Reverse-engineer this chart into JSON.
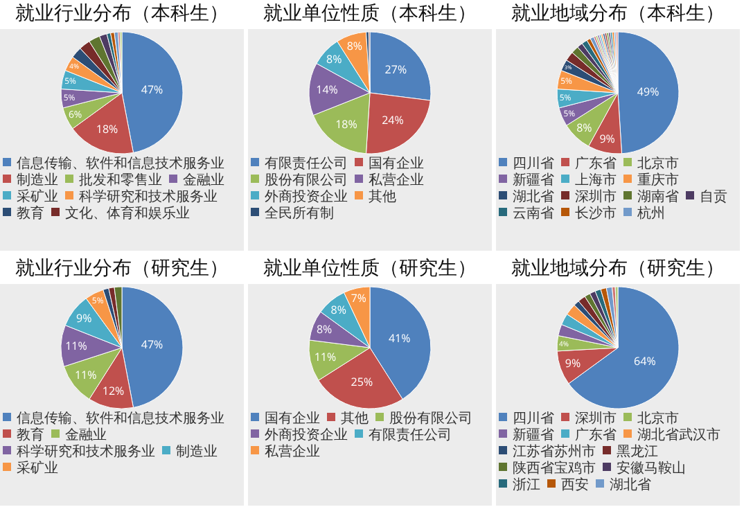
{
  "chart_data": [
    {
      "type": "pie",
      "title": "就业行业分布（本科生）",
      "legend": "bottom",
      "categories": [
        "信息传输、软件和信息技术服务业",
        "制造业",
        "批发和零售业",
        "金融业",
        "采矿业",
        "科学研究和技术服务业",
        "教育",
        "文化、体育和娱乐业",
        null,
        null,
        null,
        null,
        null,
        null,
        null
      ],
      "values": [
        47,
        18,
        6,
        5,
        5,
        4,
        3,
        3,
        3,
        2,
        1,
        1,
        1,
        0.5,
        0.5
      ],
      "colors": [
        "#4f81bd",
        "#c0504d",
        "#9bbb59",
        "#8064a2",
        "#4bacc6",
        "#f79646",
        "#2c4d75",
        "#772c2a",
        "#5f7530",
        "#4d3b62",
        "#276a7c",
        "#b65708",
        "#729aca",
        "#cd7371",
        "#afc97a"
      ],
      "value_labels": [
        "47%",
        "18%",
        "6%",
        "5%",
        "5%",
        "4%",
        null,
        null,
        null,
        null,
        null,
        null,
        null,
        null,
        null
      ]
    },
    {
      "type": "pie",
      "title": "就业单位性质（本科生）",
      "legend": "bottom",
      "categories": [
        "有限责任公司",
        "国有企业",
        "股份有限公司",
        "私营企业",
        "外商投资企业",
        "其他",
        "全民所有制",
        null
      ],
      "values": [
        27,
        24,
        18,
        14,
        8,
        8,
        0.7,
        0.3
      ],
      "colors": [
        "#4f81bd",
        "#c0504d",
        "#9bbb59",
        "#8064a2",
        "#4bacc6",
        "#f79646",
        "#2c4d75",
        "#772c2a"
      ],
      "value_labels": [
        "27%",
        "24%",
        "18%",
        "14%",
        "8%",
        "8%",
        null,
        null
      ]
    },
    {
      "type": "pie",
      "title": "就业地域分布（本科生）",
      "legend": "bottom",
      "categories": [
        "四川省",
        "广东省",
        "北京市",
        "新疆省",
        "上海市",
        "重庆市",
        "湖北省",
        "深圳市",
        "湖南省",
        "自贡",
        "云南省",
        "长沙市",
        "杭州",
        null,
        null,
        null,
        null,
        null,
        null,
        null,
        null,
        null,
        null,
        null,
        null,
        null
      ],
      "values": [
        49,
        9,
        8,
        5,
        5,
        5,
        3,
        2.5,
        2,
        1.5,
        1.5,
        1,
        1,
        0.5,
        0.5,
        0.5,
        0.5,
        0.5,
        0.5,
        0.5,
        0.5,
        0.5,
        0.5,
        0.5,
        0.5,
        0.5
      ],
      "colors": [
        "#4f81bd",
        "#c0504d",
        "#9bbb59",
        "#8064a2",
        "#4bacc6",
        "#f79646",
        "#2c4d75",
        "#772c2a",
        "#5f7530",
        "#4d3b62",
        "#276a7c",
        "#b65708",
        "#729aca",
        "#cd7371",
        "#afc97a",
        "#9983b5",
        "#6fbdd1",
        "#f9ab6b",
        "#3a5e8c",
        "#9c3b38",
        "#7c9a41",
        "#644e81",
        "#338da4",
        "#ec7a1c",
        "#95b3d7",
        "#d99694"
      ],
      "value_labels": [
        "49%",
        "9%",
        "8%",
        "5%",
        "5%",
        "5%",
        "3%",
        null,
        null,
        null,
        null,
        null,
        null,
        null,
        null,
        null,
        null,
        null,
        null,
        null,
        null,
        null,
        null,
        null,
        null,
        null
      ]
    },
    {
      "type": "pie",
      "title": "就业行业分布（研究生）",
      "legend": "bottom",
      "categories": [
        "信息传输、软件和信息技术服务业",
        "教育",
        "金融业",
        "科学研究和技术服务业",
        "制造业",
        "采矿业",
        null,
        null,
        null
      ],
      "values": [
        47,
        12,
        11,
        11,
        9,
        5,
        1.5,
        1.5,
        2
      ],
      "colors": [
        "#4f81bd",
        "#c0504d",
        "#9bbb59",
        "#8064a2",
        "#4bacc6",
        "#f79646",
        "#2c4d75",
        "#772c2a",
        "#5f7530"
      ],
      "value_labels": [
        "47%",
        "12%",
        "11%",
        "11%",
        "9%",
        "5%",
        null,
        null,
        null
      ]
    },
    {
      "type": "pie",
      "title": "就业单位性质（研究生）",
      "legend": "bottom",
      "categories": [
        "国有企业",
        "其他",
        "股份有限公司",
        "外商投资企业",
        "有限责任公司",
        "私营企业"
      ],
      "values": [
        41,
        25,
        11,
        8,
        8,
        7
      ],
      "colors": [
        "#4f81bd",
        "#c0504d",
        "#9bbb59",
        "#8064a2",
        "#4bacc6",
        "#f79646"
      ],
      "value_labels": [
        "41%",
        "25%",
        "11%",
        "8%",
        "8%",
        "7%"
      ]
    },
    {
      "type": "pie",
      "title": "就业地域分布（研究生）",
      "legend": "bottom",
      "categories": [
        "四川省",
        "深圳市",
        "北京市",
        "新疆省",
        "广东省",
        "湖北省武汉市",
        "江苏省苏州市",
        "黑龙江",
        "陕西省宝鸡市",
        "安徽马鞍山",
        "浙江",
        "西安",
        "湖北省",
        null,
        null
      ],
      "values": [
        64,
        9,
        4,
        3,
        3,
        3,
        1.5,
        2,
        1.5,
        1.5,
        1.5,
        1.5,
        1.5,
        0.8,
        0.7
      ],
      "colors": [
        "#4f81bd",
        "#c0504d",
        "#9bbb59",
        "#8064a2",
        "#4bacc6",
        "#f79646",
        "#2c4d75",
        "#772c2a",
        "#5f7530",
        "#4d3b62",
        "#276a7c",
        "#b65708",
        "#729aca",
        "#cd7371",
        "#afc97a"
      ],
      "value_labels": [
        "64%",
        "9%",
        "4%",
        null,
        null,
        null,
        null,
        null,
        null,
        null,
        null,
        null,
        null,
        null,
        null
      ]
    }
  ]
}
